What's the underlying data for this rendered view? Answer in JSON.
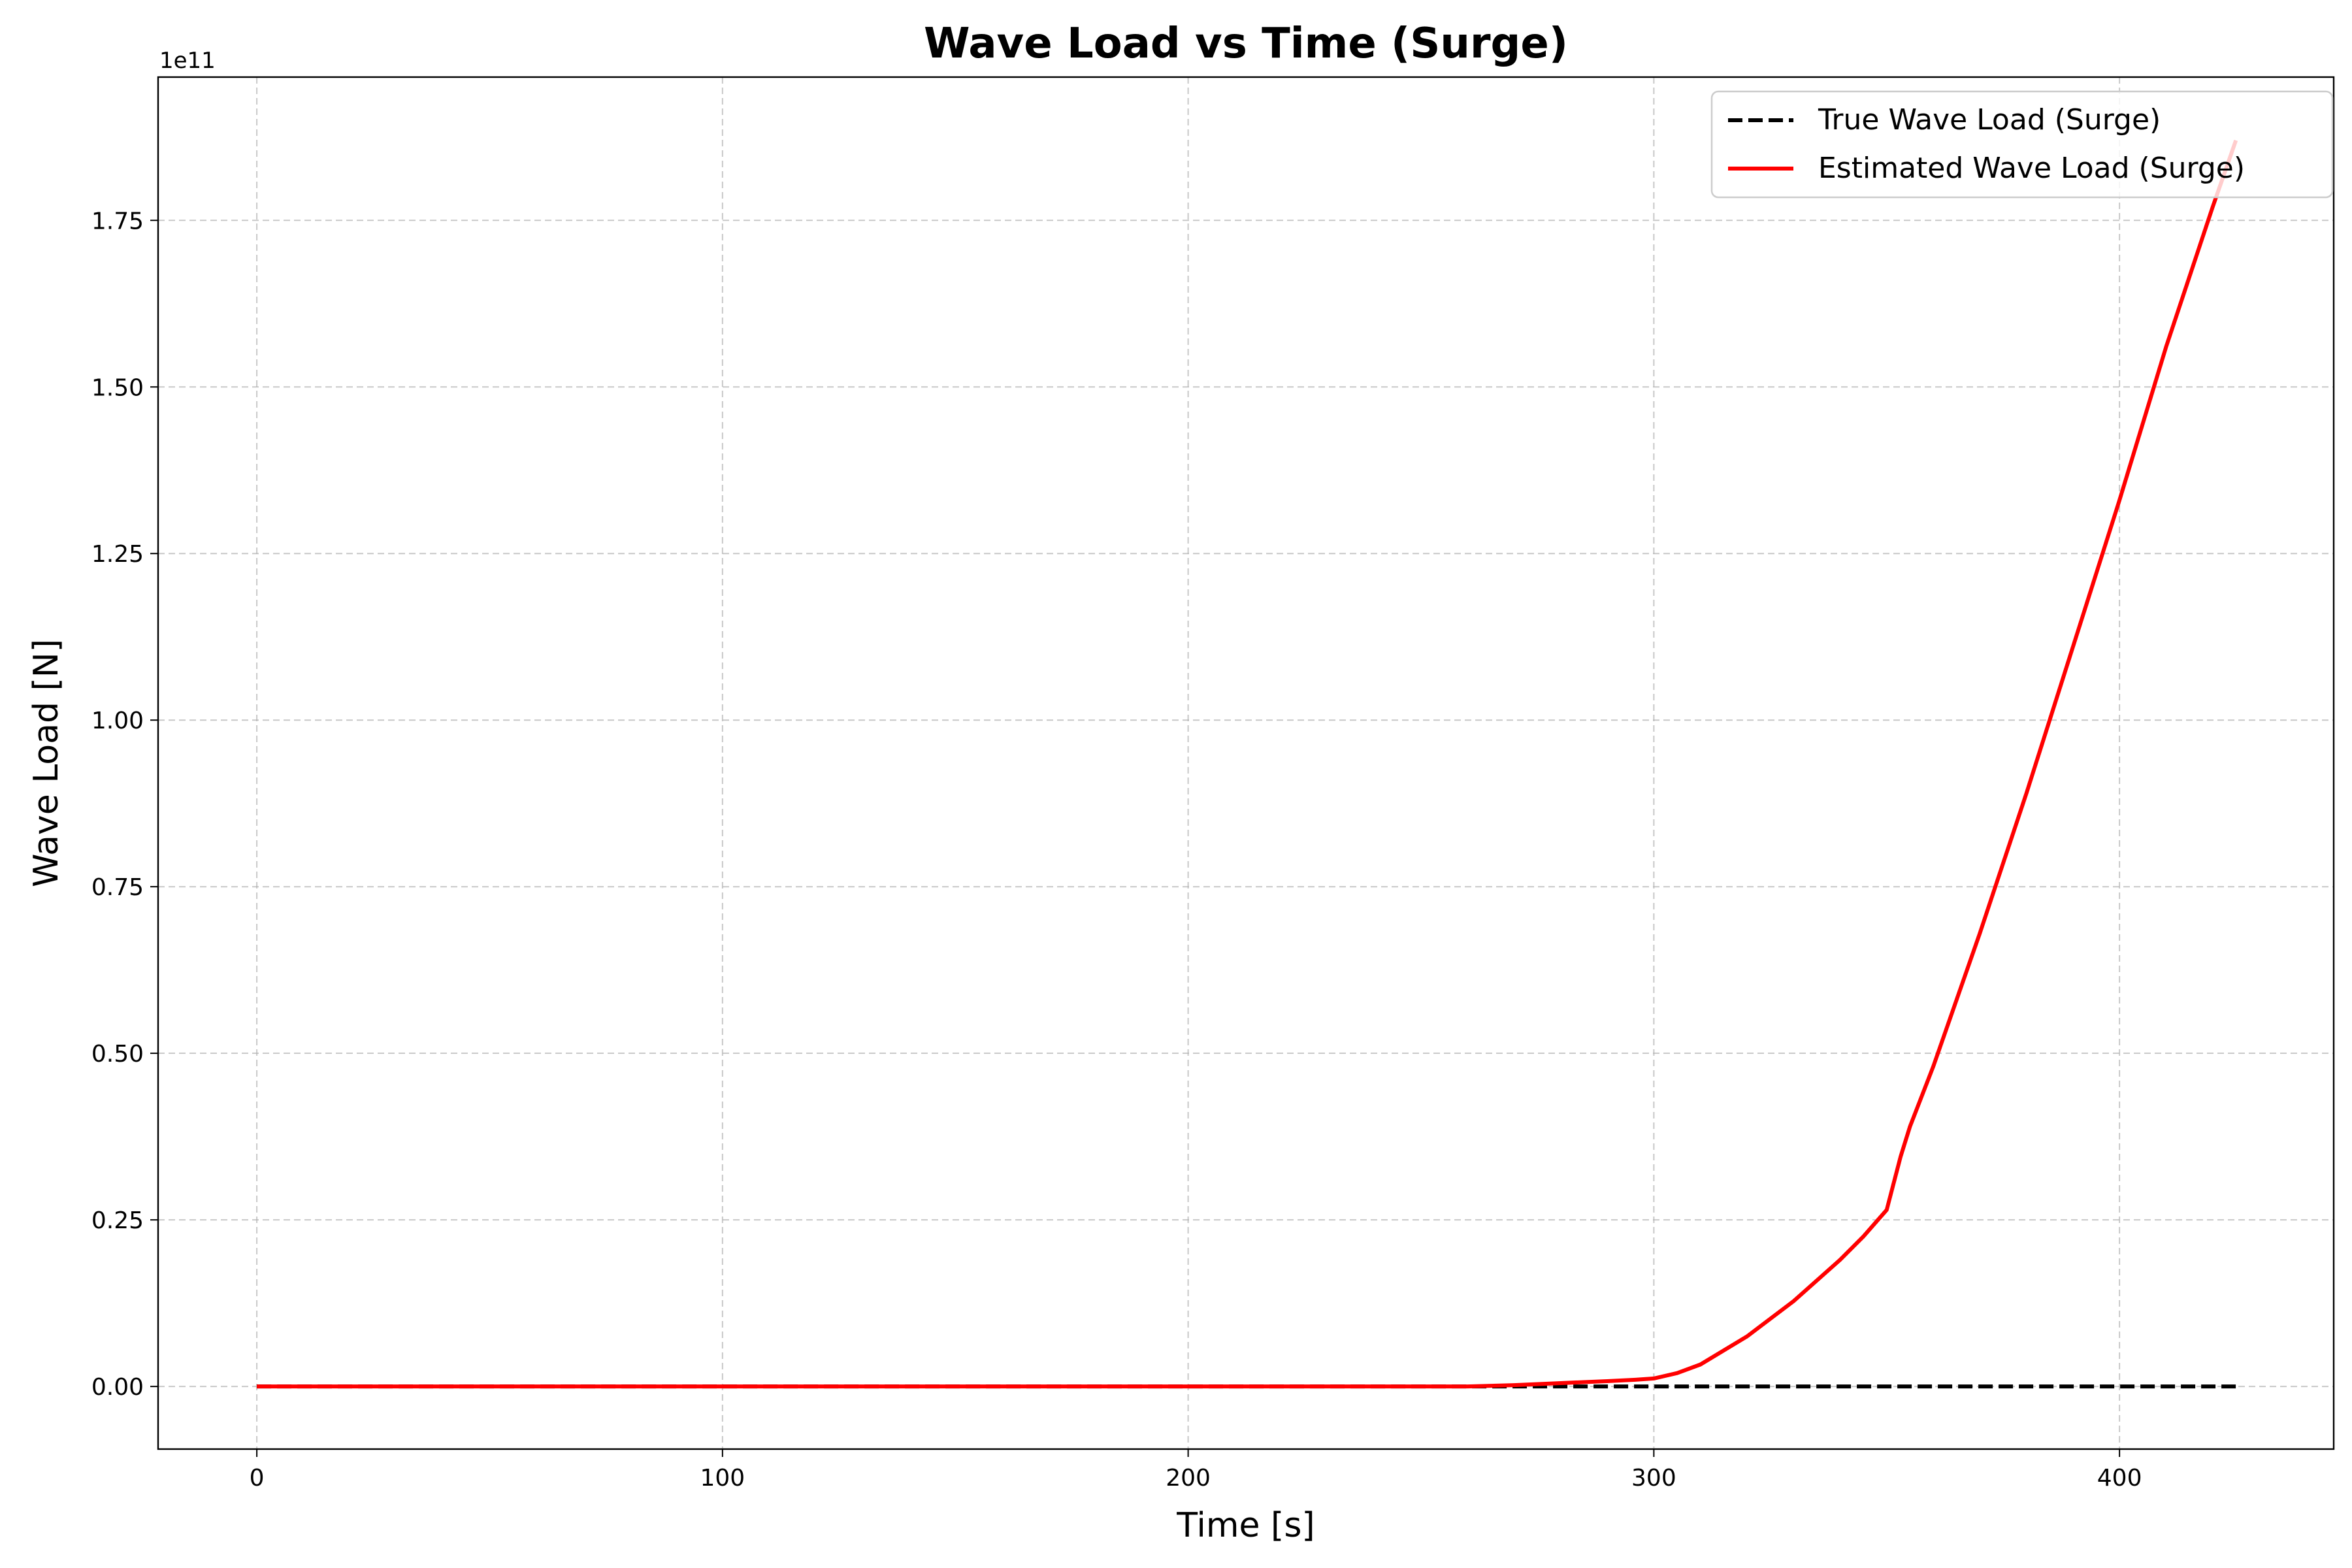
{
  "chart_data": {
    "type": "line",
    "title": "Wave Load vs Time (Surge)",
    "xlabel": "Time [s]",
    "ylabel": "Wave Load [N]",
    "offset_label": "1e11",
    "xlim": [
      -21.2,
      446
    ],
    "ylim": [
      -0.094,
      1.965
    ],
    "y_scale_note": "values in units of 1e11 N",
    "grid": true,
    "grid_style": "dashed",
    "legend_position": "top-right",
    "x_ticks": [
      0,
      100,
      200,
      300,
      400
    ],
    "x_tick_labels": [
      "0",
      "100",
      "200",
      "300",
      "400"
    ],
    "y_ticks": [
      0,
      0.25,
      0.5,
      0.75,
      1.0,
      1.25,
      1.5,
      1.75
    ],
    "y_tick_labels": [
      "0.00",
      "0.25",
      "0.50",
      "0.75",
      "1.00",
      "1.25",
      "1.50",
      "1.75"
    ],
    "series": [
      {
        "name": "True Wave Load (Surge)",
        "color": "#000000",
        "style": "dashed",
        "x": [
          0,
          425
        ],
        "y": [
          0,
          0
        ]
      },
      {
        "name": "Estimated Wave Load (Surge)",
        "color": "#ff0000",
        "style": "solid",
        "x": [
          0,
          100,
          200,
          260,
          270,
          280,
          290,
          296,
          300,
          305,
          310,
          320,
          330,
          340,
          345,
          350,
          353,
          355,
          360,
          370,
          380,
          390,
          400,
          410,
          420,
          425
        ],
        "y": [
          0,
          0,
          0,
          0.0,
          0.002,
          0.005,
          0.008,
          0.01,
          0.012,
          0.02,
          0.033,
          0.075,
          0.128,
          0.19,
          0.225,
          0.265,
          0.345,
          0.39,
          0.48,
          0.68,
          0.89,
          1.11,
          1.33,
          1.56,
          1.77,
          1.87
        ]
      }
    ]
  }
}
